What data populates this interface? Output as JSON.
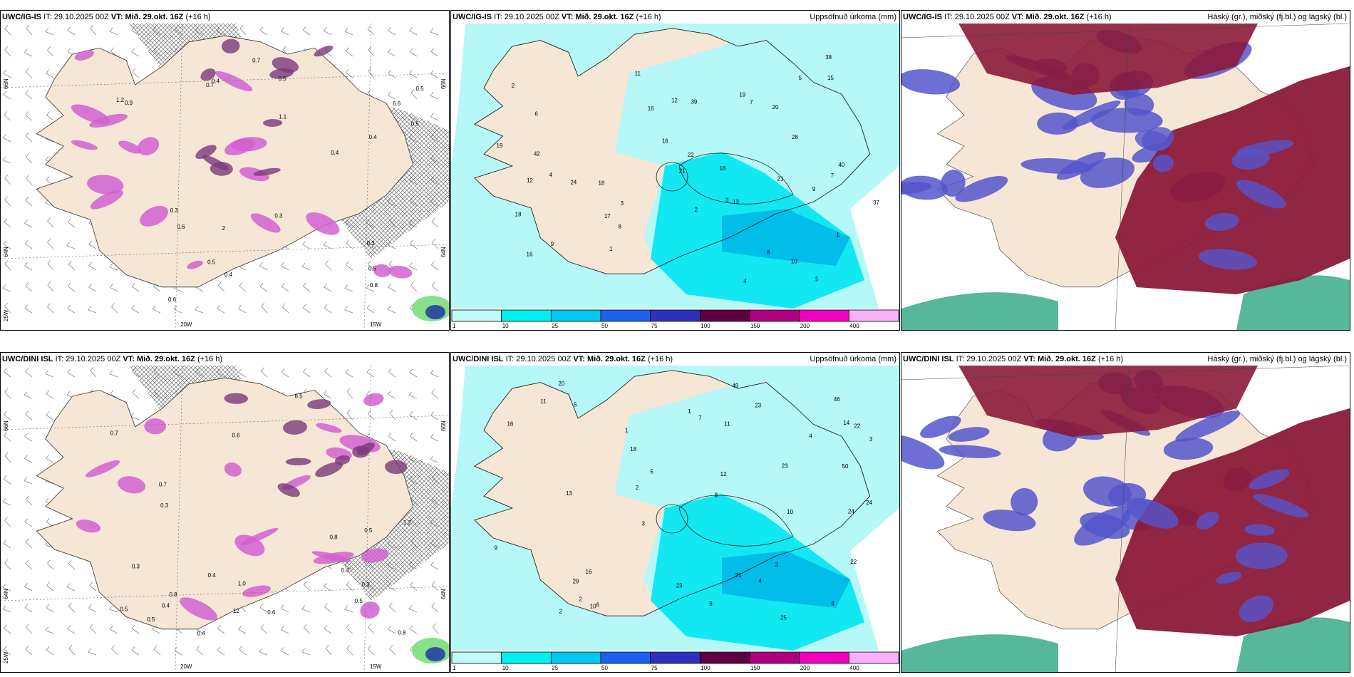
{
  "colors": {
    "land": "#f5e6d6",
    "sea": "#ffffff",
    "precip_light": "#b6f7f7",
    "precip_mid": "#00e6f0",
    "precip_dark": "#00b8e8",
    "ice": "#d160d1",
    "ice_dark": "#7a3a7a",
    "cloud_high": "#8b1a3a",
    "cloud_mid": "#5555cc",
    "cloud_low": "#3aaa8a"
  },
  "panels": [
    {
      "id": "ig-wind",
      "model": "UWC/IG-IS",
      "it_label": "IT:",
      "it_value": "29.10.2025 00Z",
      "vt_label": "VT:",
      "vt_value": "Mið. 29.okt. 16Z",
      "lead": "(+16 h)",
      "right_title": "",
      "axis_labels": {
        "lat1": "66N",
        "lat2": "64N",
        "lon1": "20W",
        "lon2": "15W",
        "lon_left": "25W",
        "lat_right1": "66N",
        "lat_right2": "64N"
      },
      "values": [
        "0.4",
        "0.3",
        "0.5",
        "0.6",
        "0.7",
        "0.5",
        "0.4",
        "0.3",
        "0.5",
        "0.6",
        "0.4",
        "0.5",
        "0.9",
        "0.7",
        "0.5",
        "1.1",
        "2",
        "6.6",
        "1.2",
        "0.8",
        "0.3",
        "0.4"
      ]
    },
    {
      "id": "ig-precip",
      "model": "UWC/IG-IS",
      "it_label": "IT:",
      "it_value": "29.10.2025 00Z",
      "vt_label": "VT:",
      "vt_value": "Mið. 29.okt. 16Z",
      "lead": "(+16 h)",
      "right_title": "Uppsöfnuð úrkoma (mm)",
      "values": [
        "5",
        "4",
        "3",
        "2",
        "1",
        "6",
        "9",
        "18",
        "20",
        "12",
        "7",
        "10",
        "8",
        "11",
        "16",
        "18",
        "21",
        "22",
        "19",
        "16",
        "38",
        "39",
        "28",
        "37",
        "40",
        "42",
        "24",
        "21",
        "16",
        "15",
        "13",
        "12",
        "17",
        "19",
        "16",
        "9",
        "7",
        "8",
        "5",
        "4",
        "3",
        "2",
        "1"
      ]
    },
    {
      "id": "ig-clouds",
      "model": "UWC/IG-IS",
      "it_label": "IT:",
      "it_value": "29.10.2025 00Z",
      "vt_label": "VT:",
      "vt_value": "Mið. 29.okt. 16Z",
      "lead": "(+16 h)",
      "right_title": "Háský (gr.), miðský (fj.bl.) og lágský (bl.)"
    },
    {
      "id": "dini-wind",
      "model": "UWC/DINI ISL",
      "it_label": "IT:",
      "it_value": "29.10.2025 00Z",
      "vt_label": "VT:",
      "vt_value": "Mið. 29.okt. 16Z",
      "lead": "(+16 h)",
      "right_title": "",
      "axis_labels": {
        "lat1": "66N",
        "lat2": "64N",
        "lon1": "20W",
        "lon2": "15W",
        "lon_left": "25W",
        "lat_right1": "66N",
        "lat_right2": "64N"
      },
      "values": [
        "0.5",
        "0.3",
        "0.4",
        "0.6",
        "0.7",
        "0.5",
        "0.3",
        "0.4",
        "0.8",
        "1.0",
        "0.6",
        "0.5",
        "0.4",
        "0.3",
        "0.8",
        "12",
        "6.5",
        "1.2",
        "0.8",
        "0.5",
        "0.4",
        "0.7"
      ]
    },
    {
      "id": "dini-precip",
      "model": "UWC/DINI ISL",
      "it_label": "IT:",
      "it_value": "29.10.2025 00Z",
      "vt_label": "VT:",
      "vt_value": "Mið. 29.okt. 16Z",
      "lead": "(+16 h)",
      "right_title": "Uppsöfnuð úrkoma (mm)",
      "values": [
        "3",
        "2",
        "1",
        "4",
        "5",
        "6",
        "7",
        "8",
        "9",
        "10",
        "12",
        "16",
        "13",
        "11",
        "24",
        "23",
        "22",
        "18",
        "16",
        "22",
        "50",
        "49",
        "14",
        "46",
        "25",
        "29",
        "21",
        "23",
        "20",
        "23",
        "24",
        "11",
        "10",
        "3",
        "5",
        "4",
        "2",
        "1",
        "3",
        "2",
        "6",
        "8"
      ]
    },
    {
      "id": "dini-clouds",
      "model": "UWC/DINI ISL",
      "it_label": "IT:",
      "it_value": "29.10.2025 00Z",
      "vt_label": "VT:",
      "vt_value": "Mið. 29.okt. 16Z",
      "lead": "(+16 h)",
      "right_title": "Háský (gr.), miðský (fj.bl.) og lágský (bl.)"
    }
  ],
  "precip_colorbar": {
    "ticks": [
      "1",
      "10",
      "25",
      "50",
      "75",
      "100",
      "150",
      "200",
      "400"
    ],
    "colors": [
      "#c0fafa",
      "#00f0f0",
      "#00c8f0",
      "#2060f0",
      "#3030c0",
      "#600040",
      "#b00080",
      "#f000c0",
      "#f8b0f8"
    ]
  }
}
